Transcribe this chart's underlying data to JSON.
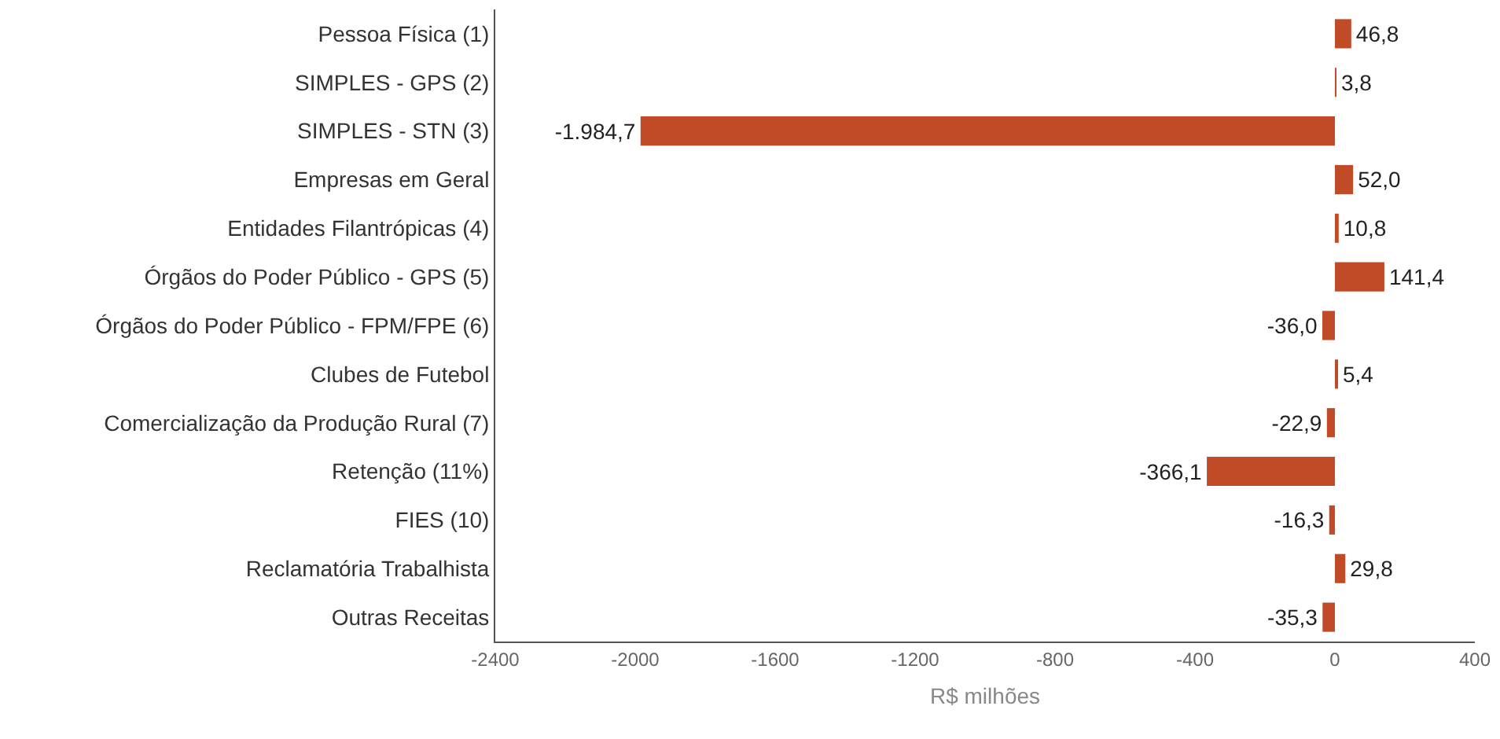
{
  "chart_data": {
    "type": "bar",
    "orientation": "horizontal",
    "xlabel": "R$ milhões",
    "categories": [
      "Pessoa Física (1)",
      "SIMPLES - GPS (2)",
      "SIMPLES - STN (3)",
      "Empresas em Geral",
      "Entidades Filantrópicas (4)",
      "Órgãos do Poder Público - GPS (5)",
      "Órgãos do Poder Público - FPM/FPE (6)",
      "Clubes de Futebol",
      "Comercialização da Produção Rural (7)",
      "Retenção (11%)",
      "FIES (10)",
      "Reclamatória Trabalhista",
      "Outras Receitas"
    ],
    "values": [
      46.8,
      3.8,
      -1984.7,
      52.0,
      10.8,
      141.4,
      -36.0,
      5.4,
      -22.9,
      -366.1,
      -16.3,
      29.8,
      -35.3
    ],
    "value_labels": [
      "46,8",
      "3,8",
      "-1.984,7",
      "52,0",
      "10,8",
      "141,4",
      "-36,0",
      "5,4",
      "-22,9",
      "-366,1",
      "-16,3",
      "29,8",
      "-35,3"
    ],
    "color": "#c04b26",
    "xlim": [
      -2400,
      400
    ],
    "xticks": [
      -2400,
      -2000,
      -1600,
      -1200,
      -800,
      -400,
      0,
      400
    ],
    "grid": false,
    "legend": false
  }
}
